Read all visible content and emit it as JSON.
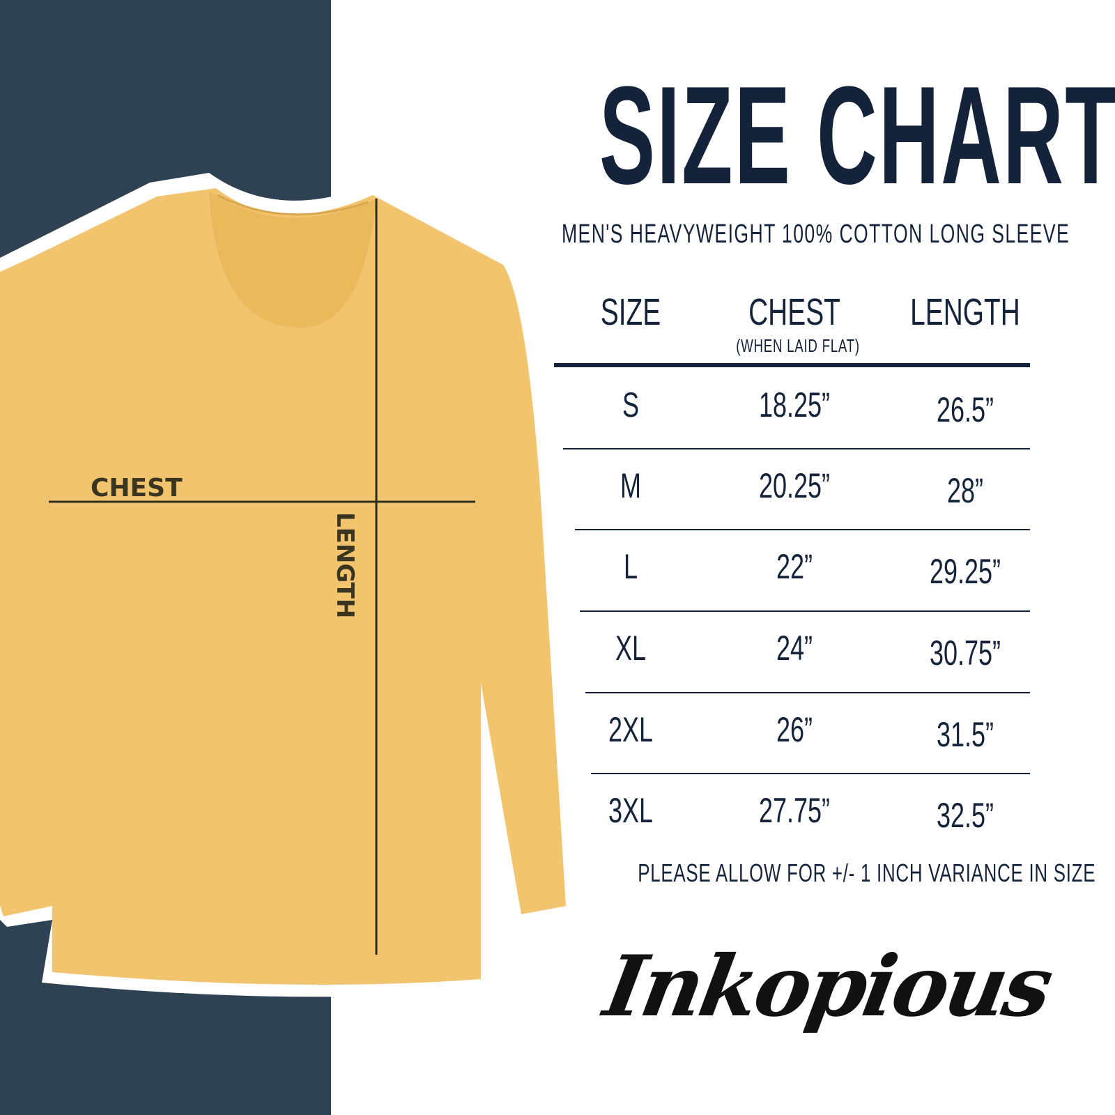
{
  "title": "SIZE CHART",
  "subtitle": "MEN'S HEAVYWEIGHT 100% COTTON LONG SLEEVE",
  "colors": {
    "navy_panel": "#2e4254",
    "shirt": "#f1c46d",
    "text": "#15233a"
  },
  "diagram": {
    "chest_label": "CHEST",
    "length_label": "LENGTH"
  },
  "table": {
    "headers": {
      "size": "SIZE",
      "chest": "CHEST",
      "chest_note": "(WHEN LAID FLAT)",
      "length": "LENGTH"
    },
    "rows": [
      {
        "size": "S",
        "chest": "18.25”",
        "length": "26.5”"
      },
      {
        "size": "M",
        "chest": "20.25”",
        "length": "28”"
      },
      {
        "size": "L",
        "chest": "22”",
        "length": "29.25”"
      },
      {
        "size": "XL",
        "chest": "24”",
        "length": "30.75”"
      },
      {
        "size": "2XL",
        "chest": "26”",
        "length": "31.5”"
      },
      {
        "size": "3XL",
        "chest": "27.75”",
        "length": "32.5”"
      }
    ]
  },
  "note": "PLEASE ALLOW FOR +/- 1 INCH VARIANCE IN SIZE",
  "brand": {
    "logo_text": "Inkopious"
  }
}
